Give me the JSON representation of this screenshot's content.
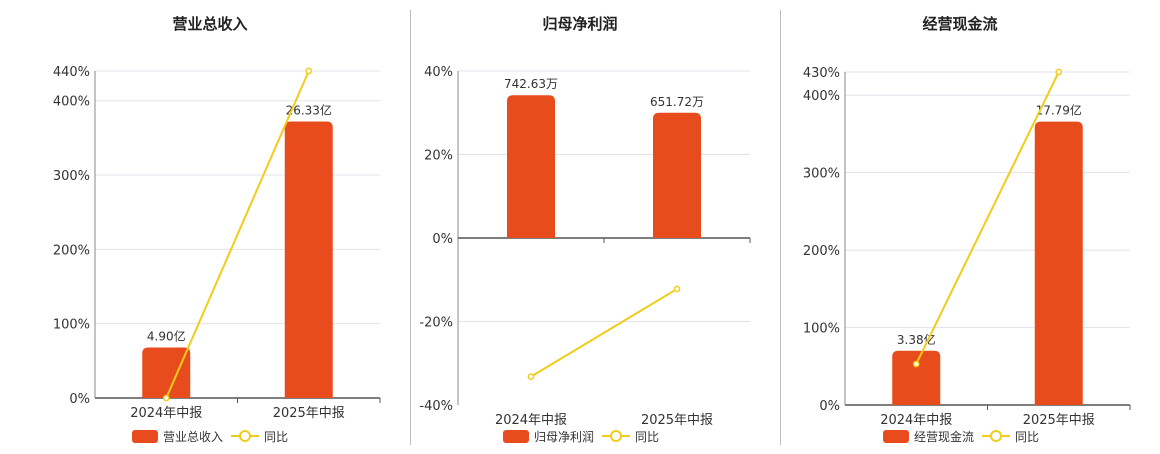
{
  "colors": {
    "bar": "#E84B1C",
    "line": "#F2CC1A",
    "grid": "#E3E3EF",
    "axis": "#555555",
    "text": "#333333"
  },
  "chart_data": [
    {
      "type": "bar",
      "title": "营业总收入",
      "categories": [
        "2024年中报",
        "2025年中报"
      ],
      "ylim": [
        0,
        440
      ],
      "yticks": [
        "0%",
        "100%",
        "200%",
        "300%",
        "400%",
        "440%"
      ],
      "ytick_values": [
        0,
        100,
        200,
        300,
        400,
        440
      ],
      "series": [
        {
          "name": "营业总收入",
          "kind": "bar",
          "values": [
            68,
            372
          ],
          "labels": [
            "4.90亿",
            "26.33亿"
          ]
        },
        {
          "name": "同比",
          "kind": "line",
          "values": [
            0,
            440
          ]
        }
      ],
      "grid": true,
      "legend": "bottom"
    },
    {
      "type": "bar",
      "title": "归母净利润",
      "categories": [
        "2024年中报",
        "2025年中报"
      ],
      "ylim": [
        -40,
        40
      ],
      "yticks": [
        "-40%",
        "-20%",
        "0%",
        "20%",
        "40%"
      ],
      "ytick_values": [
        -40,
        -20,
        0,
        20,
        40
      ],
      "series": [
        {
          "name": "归母净利润",
          "kind": "bar",
          "values": [
            34.2,
            30.0
          ],
          "labels": [
            "742.63万",
            "651.72万"
          ]
        },
        {
          "name": "同比",
          "kind": "line",
          "values": [
            -33.2,
            -12.2
          ]
        }
      ],
      "grid": true,
      "legend": "bottom"
    },
    {
      "type": "bar",
      "title": "经营现金流",
      "categories": [
        "2024年中报",
        "2025年中报"
      ],
      "ylim": [
        0,
        430
      ],
      "yticks": [
        "0%",
        "100%",
        "200%",
        "300%",
        "400%",
        "430%"
      ],
      "ytick_values": [
        0,
        100,
        200,
        300,
        400,
        430
      ],
      "series": [
        {
          "name": "经营现金流",
          "kind": "bar",
          "values": [
            70,
            366
          ],
          "labels": [
            "3.38亿",
            "17.79亿"
          ]
        },
        {
          "name": "同比",
          "kind": "line",
          "values": [
            53,
            430
          ]
        }
      ],
      "grid": true,
      "legend": "bottom"
    }
  ]
}
